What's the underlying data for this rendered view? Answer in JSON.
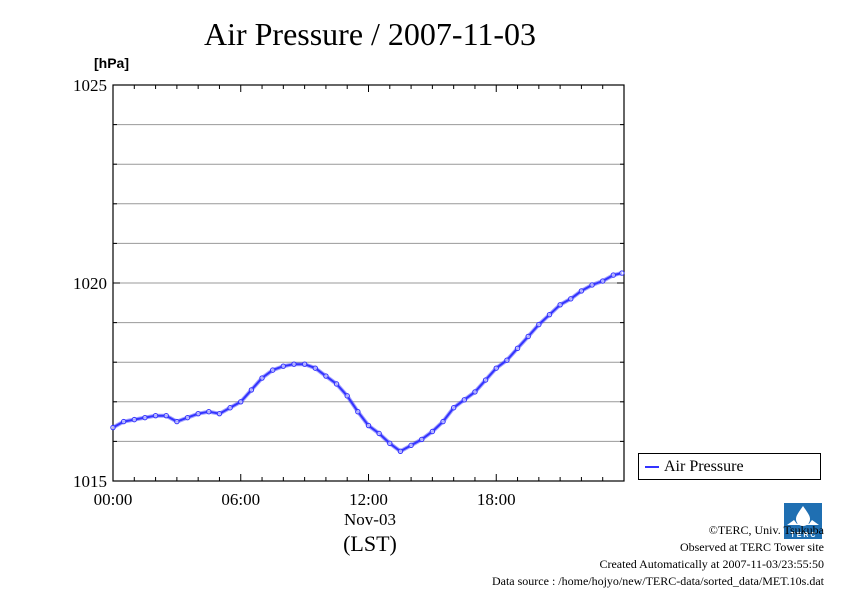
{
  "chart_data": {
    "type": "line",
    "title": "Air Pressure / 2007-11-03",
    "y_unit": "[hPa]",
    "ylim": [
      1015,
      1025
    ],
    "y_ticks": [
      "1015",
      "1020",
      "1025"
    ],
    "y_minor_step": 1,
    "grid": true,
    "xlim": [
      0,
      24
    ],
    "x_ticks": [
      {
        "value": 0,
        "label": "00:00"
      },
      {
        "value": 6,
        "label": "06:00"
      },
      {
        "value": 12,
        "label": "12:00"
      },
      {
        "value": 18,
        "label": "18:00"
      }
    ],
    "x_date_label": "Nov-03",
    "x_timezone_label": "(LST)",
    "legend": {
      "position": "bottom-right outside",
      "entries": [
        "Air Pressure"
      ]
    },
    "series": [
      {
        "name": "Air Pressure",
        "color": "#3333ff",
        "x": [
          0.0,
          0.5,
          1.0,
          1.5,
          2.0,
          2.5,
          3.0,
          3.5,
          4.0,
          4.5,
          5.0,
          5.5,
          6.0,
          6.5,
          7.0,
          7.5,
          8.0,
          8.5,
          9.0,
          9.5,
          10.0,
          10.5,
          11.0,
          11.5,
          12.0,
          12.5,
          13.0,
          13.5,
          14.0,
          14.5,
          15.0,
          15.5,
          16.0,
          16.5,
          17.0,
          17.5,
          18.0,
          18.5,
          19.0,
          19.5,
          20.0,
          20.5,
          21.0,
          21.5,
          22.0,
          22.5,
          23.0,
          23.5,
          23.9
        ],
        "values": [
          1016.35,
          1016.5,
          1016.55,
          1016.6,
          1016.65,
          1016.65,
          1016.5,
          1016.6,
          1016.7,
          1016.75,
          1016.7,
          1016.85,
          1017.0,
          1017.3,
          1017.6,
          1017.8,
          1017.9,
          1017.95,
          1017.95,
          1017.85,
          1017.65,
          1017.45,
          1017.15,
          1016.75,
          1016.4,
          1016.2,
          1015.95,
          1015.75,
          1015.9,
          1016.05,
          1016.25,
          1016.5,
          1016.85,
          1017.05,
          1017.25,
          1017.55,
          1017.85,
          1018.05,
          1018.35,
          1018.65,
          1018.95,
          1019.2,
          1019.45,
          1019.6,
          1019.8,
          1019.95,
          1020.05,
          1020.2,
          1020.25
        ]
      }
    ]
  },
  "credits": {
    "copyright": "©TERC, Univ. Tsukuba",
    "observed": "Observed at TERC Tower site",
    "created": "Created Automatically at 2007-11-03/23:55:50",
    "source": "Data source : /home/hojyo/new/TERC-data/sorted_data/MET.10s.dat",
    "logo_text": "TERC"
  }
}
